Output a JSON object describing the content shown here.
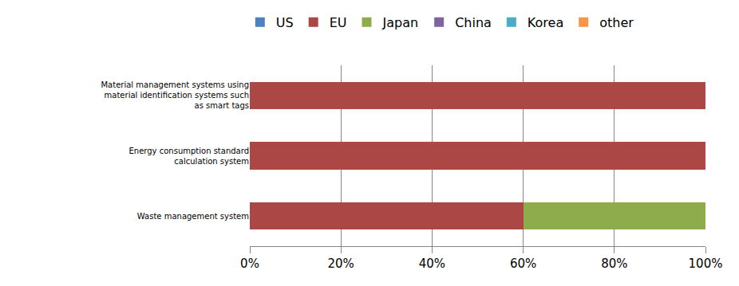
{
  "chart_data": {
    "type": "bar",
    "orientation": "horizontal",
    "stacked": true,
    "categories": [
      "Material management systems using material identification systems such as smart tags",
      "Energy consumption standard calculation system",
      "Waste management system"
    ],
    "series": [
      {
        "name": "US",
        "color": "#4f81bd",
        "values": [
          0,
          0,
          0
        ]
      },
      {
        "name": "EU",
        "color": "#ab4744",
        "values": [
          100,
          100,
          60
        ]
      },
      {
        "name": "Japan",
        "color": "#8fac4c",
        "values": [
          0,
          0,
          40
        ]
      },
      {
        "name": "China",
        "color": "#8064a2",
        "values": [
          0,
          0,
          0
        ]
      },
      {
        "name": "Korea",
        "color": "#4bacc6",
        "values": [
          0,
          0,
          0
        ]
      },
      {
        "name": "other",
        "color": "#f79646",
        "values": [
          0,
          0,
          0
        ]
      }
    ],
    "xlim": [
      0,
      100
    ],
    "xticks": [
      {
        "value": 0,
        "label": "0%"
      },
      {
        "value": 20,
        "label": "20%"
      },
      {
        "value": 40,
        "label": "40%"
      },
      {
        "value": 60,
        "label": "60%"
      },
      {
        "value": 80,
        "label": "80%"
      },
      {
        "value": 100,
        "label": "100%"
      }
    ],
    "grid": true,
    "legend": "top"
  }
}
